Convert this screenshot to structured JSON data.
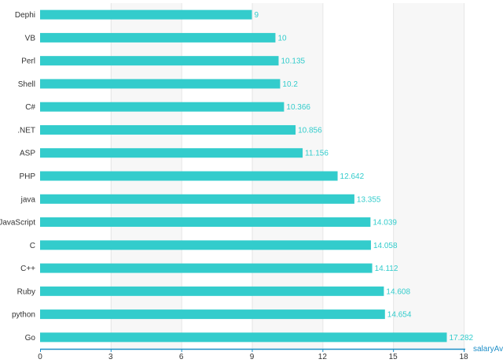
{
  "colors": {
    "bar": "#33CCCC",
    "axis": "#1F8FC8",
    "band_even": "#FFFFFF",
    "band_odd": "#F7F7F7",
    "grid": "#E6E6E6",
    "text": "#333333"
  },
  "chart_data": {
    "type": "bar",
    "orientation": "horizontal",
    "categories": [
      "Dephi",
      "VB",
      "Perl",
      "Shell",
      "C#",
      ".NET",
      "ASP",
      "PHP",
      "java",
      "JavaScript",
      "C",
      "C++",
      "Ruby",
      "python",
      "Go"
    ],
    "values": [
      9,
      10,
      10.135,
      10.2,
      10.366,
      10.856,
      11.156,
      12.642,
      13.355,
      14.039,
      14.058,
      14.112,
      14.608,
      14.654,
      17.282
    ],
    "value_labels": [
      "9",
      "10",
      "10.135",
      "10.2",
      "10.366",
      "10.856",
      "11.156",
      "12.642",
      "13.355",
      "14.039",
      "14.058",
      "14.112",
      "14.608",
      "14.654",
      "17.282"
    ],
    "series_name": "salaryAvg",
    "xlabel": "salaryAvg",
    "ylabel": "",
    "xlim": [
      0,
      18
    ],
    "xticks": [
      0,
      3,
      6,
      9,
      12,
      15,
      18
    ],
    "xtick_labels": [
      "0",
      "3",
      "6",
      "9",
      "12",
      "15",
      "18"
    ],
    "grid": true
  }
}
